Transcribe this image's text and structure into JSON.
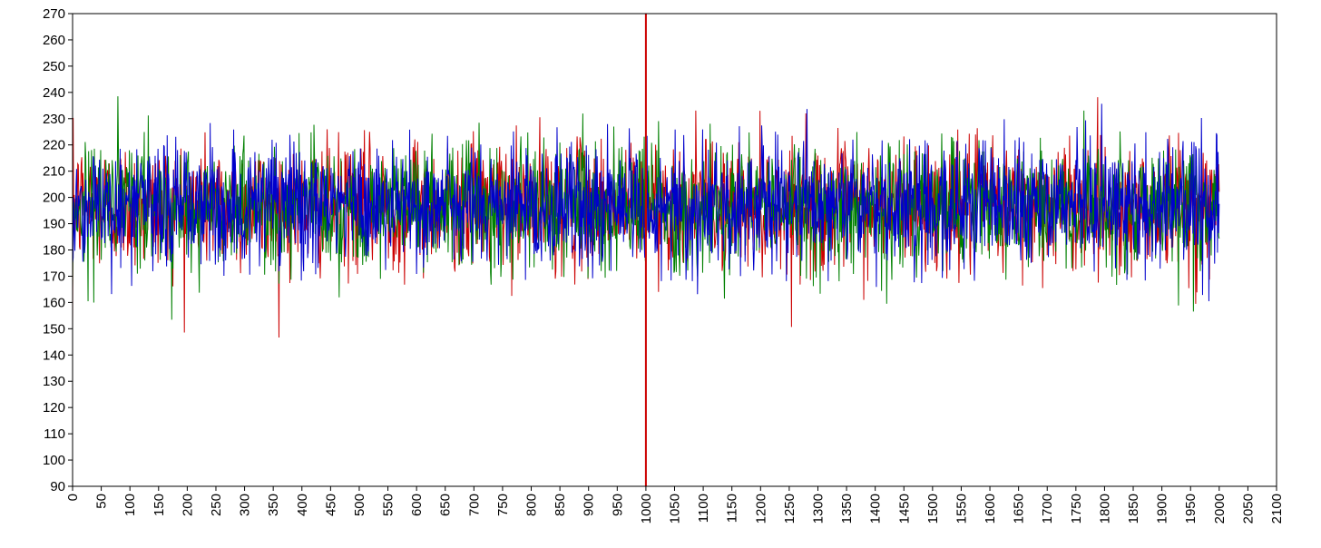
{
  "chart_data": {
    "type": "line",
    "title": "",
    "xlabel": "",
    "ylabel": "",
    "xlim": [
      0,
      2100
    ],
    "ylim": [
      90,
      270
    ],
    "x_ticks": [
      0,
      50,
      100,
      150,
      200,
      250,
      300,
      350,
      400,
      450,
      500,
      550,
      600,
      650,
      700,
      750,
      800,
      850,
      900,
      950,
      1000,
      1050,
      1100,
      1150,
      1200,
      1250,
      1300,
      1350,
      1400,
      1450,
      1500,
      1550,
      1600,
      1650,
      1700,
      1750,
      1800,
      1850,
      1900,
      1950,
      2000,
      2050,
      2100
    ],
    "y_ticks": [
      90,
      100,
      110,
      120,
      130,
      140,
      150,
      160,
      170,
      180,
      190,
      200,
      210,
      220,
      230,
      240,
      250,
      260,
      270
    ],
    "grid": false,
    "legend": "none",
    "x_range_of_data": [
      0,
      2000
    ],
    "marker_line": {
      "x": 1000,
      "color": "#cc0000"
    },
    "series": [
      {
        "color": "#cc0000",
        "mean": 197,
        "spread": 12,
        "start": 150
      },
      {
        "color": "#008000",
        "mean": 197,
        "spread": 12,
        "start": 165
      },
      {
        "color": "#0000cc",
        "mean": 197,
        "spread": 12,
        "start": 175
      }
    ]
  }
}
